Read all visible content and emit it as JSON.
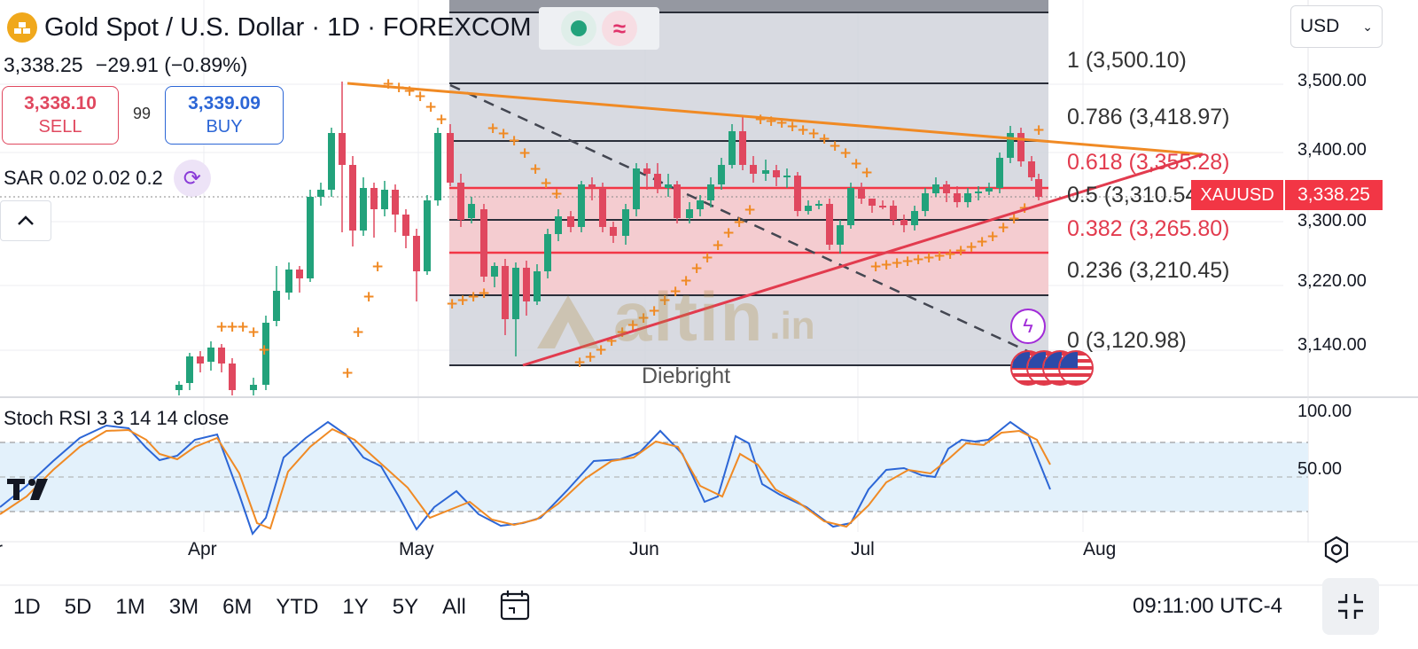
{
  "header": {
    "title": "Gold Spot / U.S. Dollar · 1D · FOREXCOM",
    "price": "3,338.25",
    "change": "−29.91 (−0.89%)"
  },
  "trade": {
    "sell_price": "3,338.10",
    "sell_label": "SELL",
    "spread": "99",
    "buy_price": "3,339.09",
    "buy_label": "BUY"
  },
  "indicator": {
    "sar_label": "SAR 0.02 0.02 0.2"
  },
  "currency": {
    "label": "USD"
  },
  "price_axis": {
    "labels": [
      "3,500.00",
      "3,400.00",
      "3,300.00",
      "3,220.00",
      "3,140.00"
    ]
  },
  "fib_levels": {
    "l1": "1 (3,500.10)",
    "l0786": "0.786 (3,418.97)",
    "l0618": "0.618 (3,355.28)",
    "l05": "0.5 (3,310.54)",
    "l0382": "0.382 (3,265.80)",
    "l0236": "0.236 (3,210.45)",
    "l0": "0 (3,120.98)"
  },
  "symbol_tag": "XAUUSD",
  "last_price_tag": "3,338.25",
  "watermark": {
    "text": "altin",
    "suffix": ".in"
  },
  "author": "Diebright",
  "rsi": {
    "label": "Stoch RSI 3 3 14 14 close",
    "axis": [
      "100.00",
      "50.00"
    ]
  },
  "time_axis": [
    "Apr",
    "May",
    "Jun",
    "Jul",
    "Aug"
  ],
  "ranges": [
    "1D",
    "5D",
    "1M",
    "3M",
    "6M",
    "YTD",
    "1Y",
    "5Y",
    "All"
  ],
  "clock": "09:11:00 UTC-4",
  "colors": {
    "up": "#22a27b",
    "down": "#e0485f",
    "sar": "#f08a24",
    "trend_upper": "#f08a24",
    "trend_lower": "#e23b4e",
    "rsi_k": "#2c66d6",
    "rsi_d": "#f08a24"
  },
  "icons": {
    "logo": "gold-bars-icon",
    "refresh": "refresh-icon",
    "chevron": "chevron-up-icon",
    "dropdown": "chevron-down-icon",
    "settings": "gear-icon",
    "date": "date-range-icon",
    "fullscreen": "fullscreen-exit-icon",
    "flash": "flash-icon",
    "flag": "us-flag-icon"
  }
}
